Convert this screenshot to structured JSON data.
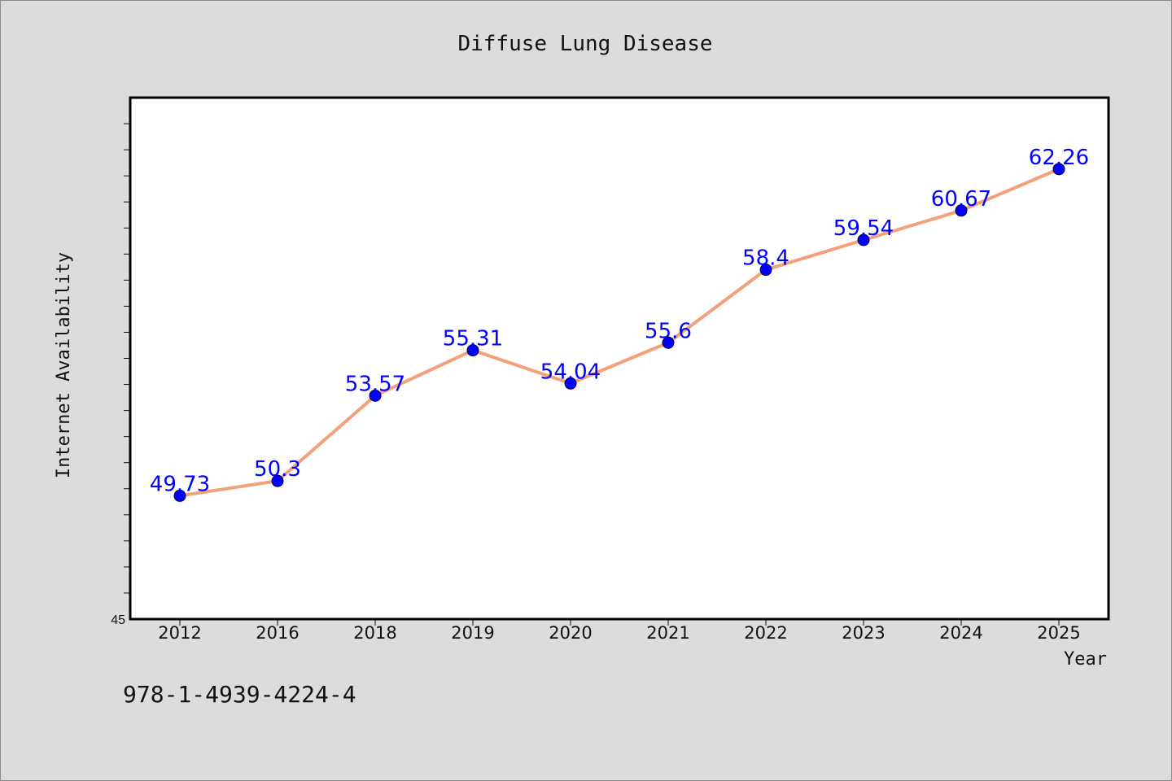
{
  "chart_data": {
    "type": "line",
    "title": "Diffuse Lung Disease",
    "xlabel": "Year",
    "ylabel": "Internet Availability",
    "categories": [
      "2012",
      "2016",
      "2018",
      "2019",
      "2020",
      "2021",
      "2022",
      "2023",
      "2024",
      "2025"
    ],
    "series": [
      {
        "values": [
          49.73,
          50.3,
          53.57,
          55.31,
          54.04,
          55.6,
          58.4,
          59.54,
          60.67,
          62.26
        ]
      }
    ],
    "data_labels": [
      "49.73",
      "50.3",
      "53.57",
      "55.31",
      "54.04",
      "55.6",
      "58.4",
      "59.54",
      "60.67",
      "62.26"
    ],
    "y_tick_label": "45",
    "ylim": [
      45,
      65
    ],
    "grid": false,
    "legend": "none",
    "colors": {
      "line": "#f4a07a",
      "marker": "#0000ff",
      "label": "#0000ff",
      "background": "#dcdcdc",
      "plot": "#ffffff"
    }
  },
  "annotation": "978-1-4939-4224-4"
}
